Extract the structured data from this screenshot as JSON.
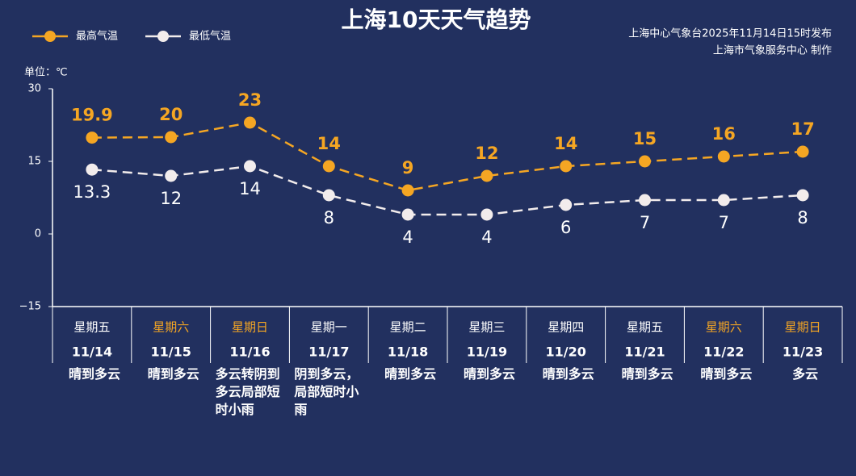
{
  "chart_data": {
    "type": "line",
    "title": "上海10天天气趋势",
    "source_lines": [
      "上海中心气象台2025年11月14日15时发布",
      "上海市气象服务中心  制作"
    ],
    "unit_label": "单位：℃",
    "weekdays": [
      "星期五",
      "星期六",
      "星期日",
      "星期一",
      "星期二",
      "星期三",
      "星期四",
      "星期五",
      "星期六",
      "星期日"
    ],
    "weekday_colors": [
      "#ffffff",
      "#f5a623",
      "#f5a623",
      "#ffffff",
      "#ffffff",
      "#ffffff",
      "#ffffff",
      "#ffffff",
      "#f5a623",
      "#f5a623"
    ],
    "categories": [
      "11/14",
      "11/15",
      "11/16",
      "11/17",
      "11/18",
      "11/19",
      "11/20",
      "11/21",
      "11/22",
      "11/23"
    ],
    "weather": [
      "晴到多云",
      "晴到多云",
      "多云转阴到多云局部短时小雨",
      "阴到多云，局部短时小雨",
      "晴到多云",
      "晴到多云",
      "晴到多云",
      "晴到多云",
      "晴到多云",
      "多云"
    ],
    "series": [
      {
        "name": "最高气温",
        "color": "#f5a623",
        "label_position": "above",
        "values": [
          19.9,
          20,
          23,
          14,
          9,
          12,
          14,
          15,
          16,
          17
        ]
      },
      {
        "name": "最低气温",
        "color": "#f2ecec",
        "label_position": "below",
        "values": [
          13.3,
          12,
          14,
          8,
          4,
          4,
          6,
          7,
          7,
          8
        ]
      }
    ],
    "ylim": [
      -15,
      30
    ],
    "yticks": [
      {
        "value": -15,
        "label": "−15"
      },
      0,
      15,
      30
    ],
    "dashed": true
  }
}
